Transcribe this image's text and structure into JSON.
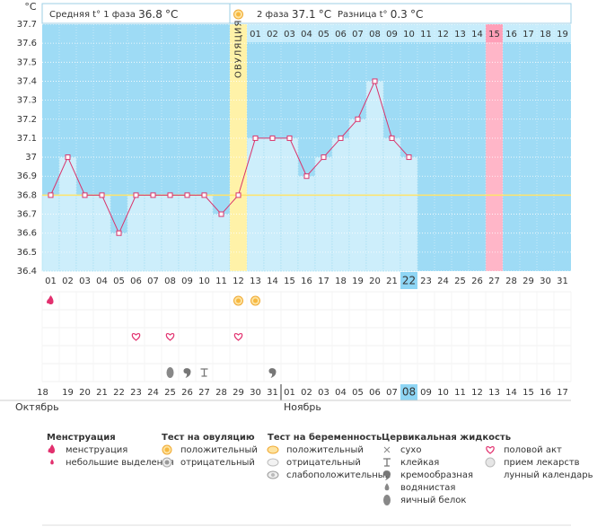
{
  "chart_data": {
    "type": "line",
    "y_label": "°C",
    "categories": [
      "01",
      "02",
      "03",
      "04",
      "05",
      "06",
      "07",
      "08",
      "09",
      "10",
      "11",
      "12",
      "13",
      "14",
      "15",
      "16",
      "17",
      "18",
      "19",
      "20",
      "21",
      "22",
      "23",
      "24",
      "25",
      "26",
      "27",
      "28",
      "29",
      "30",
      "31"
    ],
    "values": [
      36.8,
      37.0,
      36.8,
      36.8,
      36.6,
      36.8,
      36.8,
      36.8,
      36.8,
      36.8,
      36.7,
      36.8,
      37.1,
      37.1,
      37.1,
      36.9,
      37.0,
      37.1,
      37.2,
      37.4,
      37.1,
      37.0,
      null,
      null,
      null,
      null,
      null,
      null,
      null,
      null,
      null
    ],
    "color": "#d9336b",
    "ylim": [
      36.4,
      37.7
    ],
    "yticks": [
      36.4,
      36.5,
      36.6,
      36.7,
      36.8,
      36.9,
      37,
      37.1,
      37.2,
      37.3,
      37.4,
      37.5,
      37.6,
      37.7
    ],
    "grid": true,
    "coverline": 36.8,
    "ovulation_day": "12",
    "ovulation_label": "ОВУЛЯЦИЯ",
    "today": "22",
    "phase2_start": "13",
    "phase2_days": [
      "01",
      "02",
      "03",
      "04",
      "05",
      "06",
      "07",
      "08",
      "09",
      "10",
      "11",
      "12",
      "13",
      "14",
      "15",
      "16",
      "17",
      "18",
      "19"
    ],
    "phase2_highlight": "15",
    "phase1": {
      "label": "Средняя t° 1 фаза",
      "value": 36.8,
      "unit": "°C"
    },
    "phase2": {
      "label": "2 фаза",
      "value": 37.1,
      "unit": "°C"
    },
    "difference": {
      "label": "Разница t°",
      "value": 0.3,
      "unit": "°C"
    },
    "symbols": [
      {
        "day": "01",
        "icon": "menstruation"
      },
      {
        "day": "12",
        "icon": "ovulation_positive"
      },
      {
        "day": "13",
        "icon": "ovulation_positive"
      },
      {
        "day": "06",
        "icon": "sex"
      },
      {
        "day": "08",
        "icon": "sex"
      },
      {
        "day": "12",
        "icon": "sex"
      },
      {
        "day": "08",
        "icon": "eggwhite"
      },
      {
        "day": "09",
        "icon": "creamy"
      },
      {
        "day": "10",
        "icon": "sticky"
      },
      {
        "day": "14",
        "icon": "creamy"
      }
    ],
    "dates": [
      {
        "label": "18",
        "weekend": false
      },
      {
        "label": "19",
        "weekend": false
      },
      {
        "label": "20",
        "weekend": false
      },
      {
        "label": "21",
        "weekend": false
      },
      {
        "label": "22",
        "weekend": true
      },
      {
        "label": "23",
        "weekend": true
      },
      {
        "label": "24",
        "weekend": false
      },
      {
        "label": "25",
        "weekend": false
      },
      {
        "label": "26",
        "weekend": false
      },
      {
        "label": "27",
        "weekend": false
      },
      {
        "label": "28",
        "weekend": false
      },
      {
        "label": "29",
        "weekend": true
      },
      {
        "label": "30",
        "weekend": true
      },
      {
        "label": "31",
        "weekend": false
      },
      {
        "label": "01",
        "weekend": false
      },
      {
        "label": "02",
        "weekend": false
      },
      {
        "label": "03",
        "weekend": false
      },
      {
        "label": "04",
        "weekend": false
      },
      {
        "label": "05",
        "weekend": true
      },
      {
        "label": "06",
        "weekend": true
      },
      {
        "label": "07",
        "weekend": false
      },
      {
        "label": "08",
        "weekend": false
      },
      {
        "label": "09",
        "weekend": false
      },
      {
        "label": "10",
        "weekend": false
      },
      {
        "label": "11",
        "weekend": false
      },
      {
        "label": "12",
        "weekend": true
      },
      {
        "label": "13",
        "weekend": true
      },
      {
        "label": "14",
        "weekend": false
      },
      {
        "label": "15",
        "weekend": false
      },
      {
        "label": "16",
        "weekend": false
      },
      {
        "label": "17",
        "weekend": false
      }
    ],
    "months": [
      "Октябрь",
      "Ноябрь"
    ],
    "legend": [
      {
        "title": "Менструация",
        "items": [
          {
            "label": "менструация",
            "icon": "menstruation"
          },
          {
            "label": "небольшие выделения",
            "icon": "spotting"
          }
        ]
      },
      {
        "title": "Тест на овуляцию",
        "items": [
          {
            "label": "положительный",
            "icon": "ovulation_positive"
          },
          {
            "label": "отрицательный",
            "icon": "ovulation_negative"
          }
        ]
      },
      {
        "title": "Тест на беременность",
        "items": [
          {
            "label": "положительный",
            "icon": "pregnancy_positive"
          },
          {
            "label": "отрицательный",
            "icon": "pregnancy_negative"
          },
          {
            "label": "слабоположительный",
            "icon": "pregnancy_weak"
          }
        ]
      },
      {
        "title": "Цервикальная жидкость",
        "items": [
          {
            "label": "сухо",
            "icon": "dry"
          },
          {
            "label": "клейкая",
            "icon": "sticky"
          },
          {
            "label": "кремообразная",
            "icon": "creamy"
          },
          {
            "label": "водянистая",
            "icon": "watery"
          },
          {
            "label": "яичный белок",
            "icon": "eggwhite"
          }
        ]
      },
      {
        "title": "",
        "items": [
          {
            "label": "половой акт",
            "icon": "sex"
          },
          {
            "label": "прием лекарств",
            "icon": "meds"
          },
          {
            "label": "лунный календарь",
            "icon": "moon"
          }
        ]
      }
    ]
  }
}
